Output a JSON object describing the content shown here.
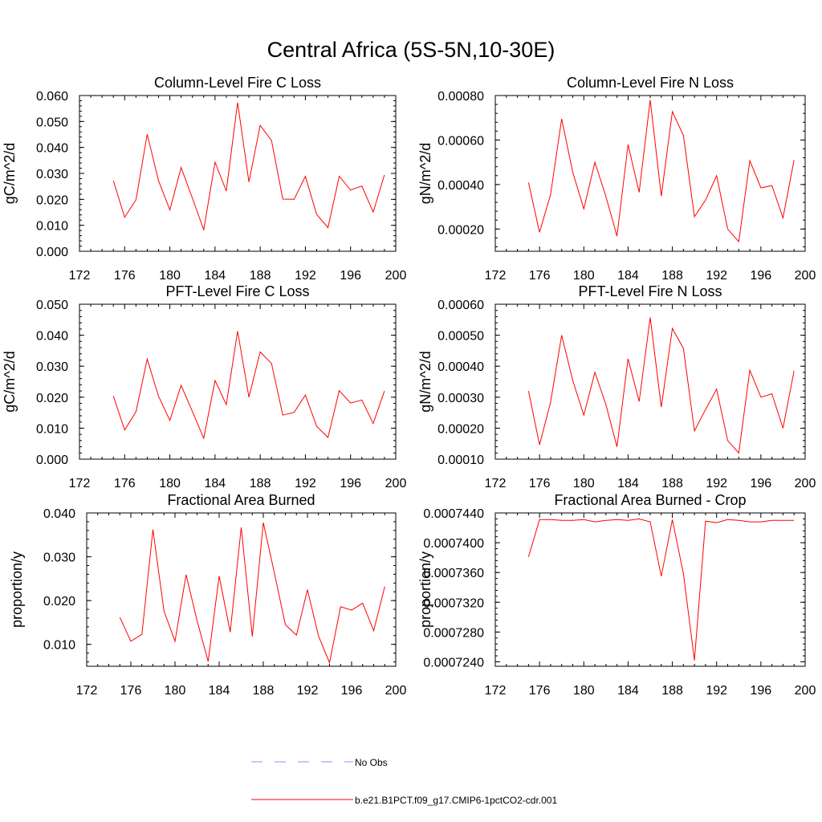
{
  "figure": {
    "title": "Central Africa (5S-5N,10-30E)",
    "series_color": "#ff0000",
    "obs_color": "#8c8cff"
  },
  "legend": {
    "items": [
      {
        "label": "No Obs",
        "style": "dashed"
      },
      {
        "label": "b.e21.B1PCT.f09_g17.CMIP6-1pctCO2-cdr.001",
        "style": "solid"
      }
    ]
  },
  "chart_data": [
    {
      "type": "line",
      "title": "Column-Level Fire C Loss",
      "ylabel": "gC/m^2/d",
      "xlim": [
        172,
        200
      ],
      "ylim": [
        0,
        0.06
      ],
      "xticks": [
        "172",
        "176",
        "180",
        "184",
        "188",
        "192",
        "196",
        "200"
      ],
      "yticks": [
        "0.000",
        "0.010",
        "0.020",
        "0.030",
        "0.040",
        "0.050",
        "0.060"
      ],
      "x": [
        175,
        176,
        177,
        178,
        179,
        180,
        181,
        182,
        183,
        184,
        185,
        186,
        187,
        188,
        189,
        190,
        191,
        192,
        193,
        194,
        195,
        196,
        197,
        198,
        199
      ],
      "series": [
        {
          "name": "b.e21.B1PCT.f09_g17.CMIP6-1pctCO2-cdr.001",
          "values": [
            0.0272,
            0.0131,
            0.0198,
            0.0451,
            0.0272,
            0.0159,
            0.0323,
            0.0204,
            0.0083,
            0.0343,
            0.0232,
            0.0573,
            0.0267,
            0.0485,
            0.0427,
            0.0201,
            0.02,
            0.0289,
            0.0142,
            0.0091,
            0.0289,
            0.0236,
            0.0251,
            0.0151,
            0.0294
          ]
        }
      ]
    },
    {
      "type": "line",
      "title": "Column-Level Fire N Loss",
      "ylabel": "gN/m^2/d",
      "xlim": [
        172,
        200
      ],
      "ylim": [
        0.0001,
        0.0008
      ],
      "xticks": [
        "172",
        "176",
        "180",
        "184",
        "188",
        "192",
        "196",
        "200"
      ],
      "yticks": [
        "0.00020",
        "0.00040",
        "0.00060",
        "0.00080"
      ],
      "x": [
        175,
        176,
        177,
        178,
        179,
        180,
        181,
        182,
        183,
        184,
        185,
        186,
        187,
        188,
        189,
        190,
        191,
        192,
        193,
        194,
        195,
        196,
        197,
        198,
        199
      ],
      "series": [
        {
          "name": "b.e21.B1PCT.f09_g17.CMIP6-1pctCO2-cdr.001",
          "values": [
            0.000409,
            0.000185,
            0.000355,
            0.000695,
            0.000455,
            0.00029,
            0.0005,
            0.000345,
            0.000168,
            0.00058,
            0.000365,
            0.00078,
            0.000348,
            0.000728,
            0.00062,
            0.000255,
            0.00033,
            0.00044,
            0.0002,
            0.000143,
            0.000507,
            0.000385,
            0.000395,
            0.00025,
            0.00051
          ]
        }
      ]
    },
    {
      "type": "line",
      "title": "PFT-Level Fire C Loss",
      "ylabel": "gC/m^2/d",
      "xlim": [
        172,
        200
      ],
      "ylim": [
        0,
        0.05
      ],
      "xticks": [
        "172",
        "176",
        "180",
        "184",
        "188",
        "192",
        "196",
        "200"
      ],
      "yticks": [
        "0.000",
        "0.010",
        "0.020",
        "0.030",
        "0.040",
        "0.050"
      ],
      "x": [
        175,
        176,
        177,
        178,
        179,
        180,
        181,
        182,
        183,
        184,
        185,
        186,
        187,
        188,
        189,
        190,
        191,
        192,
        193,
        194,
        195,
        196,
        197,
        198,
        199
      ],
      "series": [
        {
          "name": "b.e21.B1PCT.f09_g17.CMIP6-1pctCO2-cdr.001",
          "values": [
            0.0204,
            0.0094,
            0.0153,
            0.0323,
            0.0203,
            0.0125,
            0.0238,
            0.0154,
            0.0067,
            0.0254,
            0.0176,
            0.0413,
            0.02,
            0.0346,
            0.0309,
            0.0142,
            0.0151,
            0.0207,
            0.0106,
            0.007,
            0.0221,
            0.0181,
            0.0191,
            0.0115,
            0.022
          ]
        }
      ]
    },
    {
      "type": "line",
      "title": "PFT-Level Fire N Loss",
      "ylabel": "gN/m^2/d",
      "xlim": [
        172,
        200
      ],
      "ylim": [
        0.0001,
        0.0006
      ],
      "xticks": [
        "172",
        "176",
        "180",
        "184",
        "188",
        "192",
        "196",
        "200"
      ],
      "yticks": [
        "0.00010",
        "0.00020",
        "0.00030",
        "0.00040",
        "0.00050",
        "0.00060"
      ],
      "x": [
        175,
        176,
        177,
        178,
        179,
        180,
        181,
        182,
        183,
        184,
        185,
        186,
        187,
        188,
        189,
        190,
        191,
        192,
        193,
        194,
        195,
        196,
        197,
        198,
        199
      ],
      "series": [
        {
          "name": "b.e21.B1PCT.f09_g17.CMIP6-1pctCO2-cdr.001",
          "values": [
            0.00032,
            0.000146,
            0.000284,
            0.0005,
            0.000354,
            0.000242,
            0.00038,
            0.000275,
            0.00014,
            0.000424,
            0.000286,
            0.000557,
            0.000268,
            0.000522,
            0.000457,
            0.000191,
            0.00026,
            0.000326,
            0.00016,
            0.00012,
            0.000387,
            0.0003,
            0.000311,
            0.0002,
            0.000385
          ]
        }
      ]
    },
    {
      "type": "line",
      "title": "Fractional Area Burned",
      "ylabel": "proportion/y",
      "xlim": [
        172,
        200
      ],
      "ylim": [
        0.005,
        0.04
      ],
      "xticks": [
        "172",
        "176",
        "180",
        "184",
        "188",
        "192",
        "196",
        "200"
      ],
      "yticks": [
        "0.010",
        "0.020",
        "0.030",
        "0.040"
      ],
      "x": [
        175,
        176,
        177,
        178,
        179,
        180,
        181,
        182,
        183,
        184,
        185,
        186,
        187,
        188,
        189,
        190,
        191,
        192,
        193,
        194,
        195,
        196,
        197,
        198,
        199
      ],
      "series": [
        {
          "name": "b.e21.B1PCT.f09_g17.CMIP6-1pctCO2-cdr.001",
          "values": [
            0.0162,
            0.0107,
            0.0123,
            0.0362,
            0.0176,
            0.0107,
            0.0259,
            0.0154,
            0.0061,
            0.0256,
            0.0128,
            0.0367,
            0.0118,
            0.0378,
            0.0263,
            0.0145,
            0.0121,
            0.0225,
            0.0119,
            0.0058,
            0.0186,
            0.0178,
            0.0194,
            0.0131,
            0.0232
          ]
        }
      ]
    },
    {
      "type": "line",
      "title": "Fractional Area Burned - Crop",
      "ylabel": "proportion/y",
      "xlim": [
        172,
        200
      ],
      "ylim": [
        0.0007234,
        0.000744
      ],
      "xticks": [
        "172",
        "176",
        "180",
        "184",
        "188",
        "192",
        "196",
        "200"
      ],
      "yticks": [
        "0.0007240",
        "0.0007280",
        "0.0007320",
        "0.0007360",
        "0.0007400",
        "0.0007440"
      ],
      "x": [
        175,
        176,
        177,
        178,
        179,
        180,
        181,
        182,
        183,
        184,
        185,
        186,
        187,
        188,
        189,
        190,
        191,
        192,
        193,
        194,
        195,
        196,
        197,
        198,
        199
      ],
      "series": [
        {
          "name": "b.e21.B1PCT.f09_g17.CMIP6-1pctCO2-cdr.001",
          "values": [
            0.0007381,
            0.0007431,
            0.0007431,
            0.000743,
            0.000743,
            0.0007431,
            0.0007428,
            0.000743,
            0.0007431,
            0.000743,
            0.0007432,
            0.0007428,
            0.0007355,
            0.0007431,
            0.0007358,
            0.0007242,
            0.0007429,
            0.0007427,
            0.0007431,
            0.000743,
            0.0007428,
            0.0007428,
            0.000743,
            0.000743,
            0.000743
          ]
        }
      ]
    }
  ]
}
